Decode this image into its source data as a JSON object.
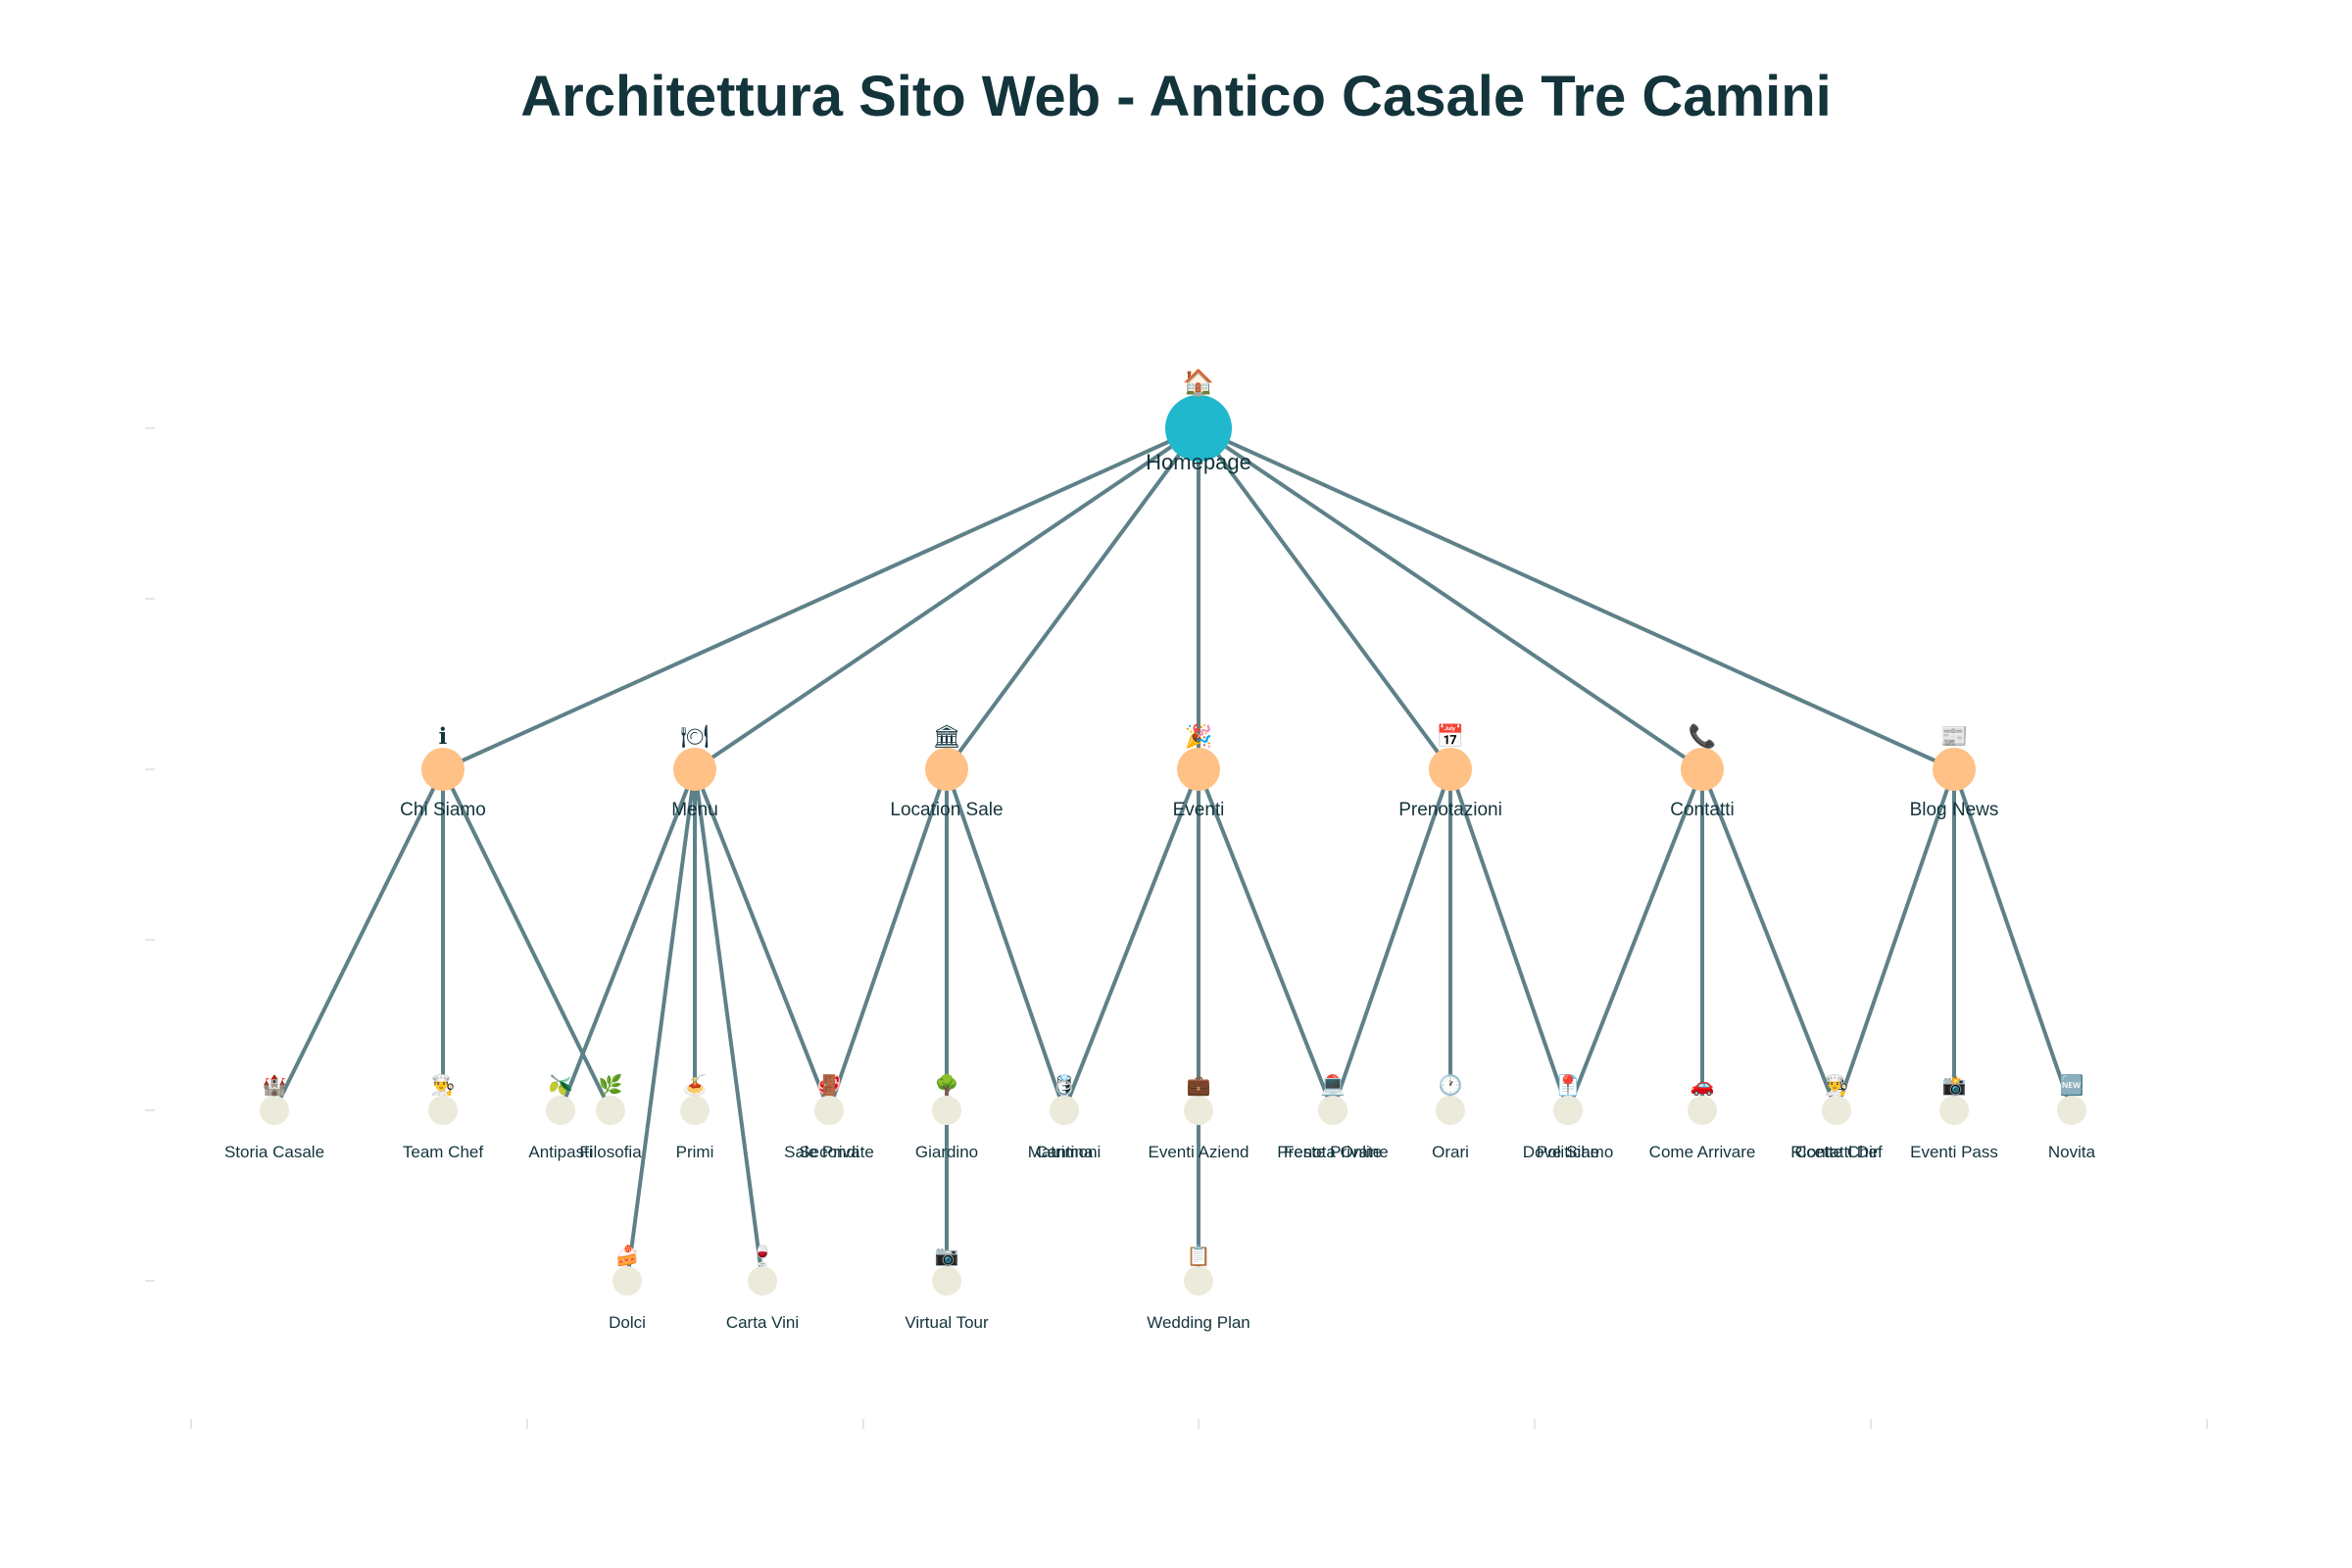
{
  "title": "Architettura Sito Web - Antico Casale Tre Camini",
  "colors": {
    "root": "#1fb8cd",
    "section": "#ffc185",
    "page": "#eceadb",
    "edge": "#5e8189",
    "text": "#13343b"
  },
  "diagram": {
    "type": "tree",
    "root": {
      "id": "home",
      "label": "Homepage",
      "icon": "home-icon"
    },
    "sections": [
      {
        "id": "chi",
        "label": "Chi Siamo",
        "icon": "info-icon",
        "children": [
          {
            "label": "Storia Casale",
            "icon": "castle-icon"
          },
          {
            "label": "Team Chef",
            "icon": "chef-icon"
          },
          {
            "label": "Filosofia",
            "icon": "leaf-icon"
          }
        ]
      },
      {
        "id": "menu",
        "label": "Menu",
        "icon": "plate-icon",
        "children": [
          {
            "label": "Antipasti",
            "icon": "olive-icon"
          },
          {
            "label": "Dolci",
            "icon": "cake-icon"
          },
          {
            "label": "Primi",
            "icon": "pasta-icon"
          },
          {
            "label": "Carta Vini",
            "icon": "wine-icon"
          },
          {
            "label": "Secondi",
            "icon": "meat-icon"
          }
        ]
      },
      {
        "id": "location",
        "label": "Location Sale",
        "icon": "building-icon",
        "children": [
          {
            "label": "Sale Private",
            "icon": "door-icon"
          },
          {
            "label": "Giardino",
            "icon": "tree-icon"
          },
          {
            "label": "Virtual Tour",
            "icon": "camera-icon"
          },
          {
            "label": "Cantina",
            "icon": "barrel-icon"
          }
        ]
      },
      {
        "id": "eventi",
        "label": "Eventi",
        "icon": "party-icon",
        "children": [
          {
            "label": "Matrimoni",
            "icon": "ring-icon"
          },
          {
            "label": "Eventi Aziend",
            "icon": "briefcase-icon"
          },
          {
            "label": "Wedding Plan",
            "icon": "clipboard-icon"
          },
          {
            "label": "Feste Private",
            "icon": "balloon-icon"
          }
        ]
      },
      {
        "id": "prenotazioni",
        "label": "Prenotazioni",
        "icon": "calendar-icon",
        "children": [
          {
            "label": "Prenota Online",
            "icon": "laptop-icon"
          },
          {
            "label": "Orari",
            "icon": "clock-icon"
          },
          {
            "label": "Politiche",
            "icon": "document-icon"
          }
        ]
      },
      {
        "id": "contatti",
        "label": "Contatti",
        "icon": "phone-icon",
        "children": [
          {
            "label": "Dove Siamo",
            "icon": "pin-icon"
          },
          {
            "label": "Come Arrivare",
            "icon": "car-icon"
          },
          {
            "label": "Contatti Dir",
            "icon": "mail-icon"
          }
        ]
      },
      {
        "id": "blog",
        "label": "Blog News",
        "icon": "newspaper-icon",
        "children": [
          {
            "label": "Ricette Chef",
            "icon": "recipe-icon"
          },
          {
            "label": "Eventi Pass",
            "icon": "photo-icon"
          },
          {
            "label": "Novita",
            "icon": "new-icon"
          }
        ]
      }
    ]
  }
}
